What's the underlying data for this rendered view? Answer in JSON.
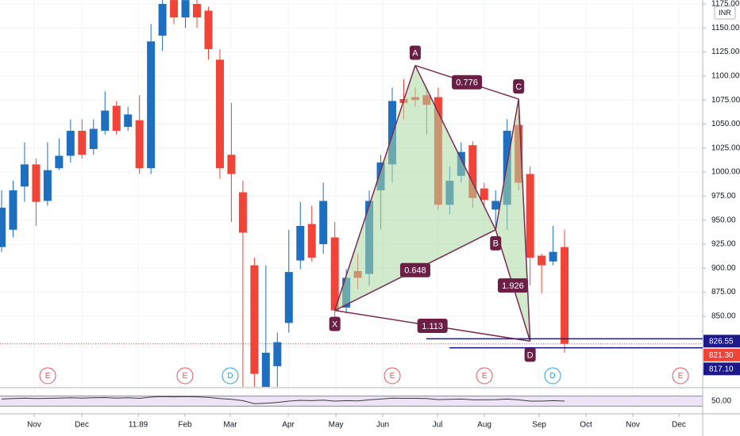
{
  "toolbar": {
    "currency": "INR"
  },
  "chart_data": {
    "type": "candlestick",
    "up_color": "#1f6fc0",
    "down_color": "#f04438",
    "open": [
      922,
      940,
      985,
      1008,
      970,
      1004,
      1017,
      1043,
      1024,
      1043,
      1069,
      1047,
      1054,
      1004,
      1142,
      1179,
      1161,
      1175,
      1168,
      1117,
      1018,
      979,
      903,
      775,
      798,
      843,
      908,
      946,
      925,
      932,
      859,
      897,
      894,
      981,
      1008,
      1076,
      1078,
      1080,
      1078,
      966,
      996,
      1028,
      983,
      961,
      966,
      1049,
      998,
      913,
      907,
      922
    ],
    "high": [
      981,
      991,
      1031,
      1014,
      1031,
      1035,
      1055,
      1055,
      1055,
      1084,
      1074,
      1068,
      1080,
      1154,
      1179,
      1179,
      1179,
      1179,
      1172,
      1128,
      1072,
      991,
      911,
      903,
      833,
      940,
      969,
      965,
      989,
      948,
      899,
      915,
      981,
      1018,
      1088,
      1097,
      1088,
      1088,
      1088,
      1006,
      1031,
      1032,
      989,
      981,
      1055,
      1064,
      1006,
      915,
      944,
      940
    ],
    "low": [
      917,
      932,
      969,
      944,
      965,
      1002,
      1010,
      1014,
      1018,
      1039,
      1039,
      1043,
      998,
      998,
      1126,
      1154,
      1150,
      1150,
      1117,
      993,
      948,
      775,
      775,
      775,
      775,
      833,
      899,
      907,
      915,
      849,
      853,
      878,
      882,
      940,
      989,
      1055,
      1068,
      1039,
      961,
      956,
      989,
      963,
      963,
      940,
      940,
      981,
      882,
      874,
      903,
      812
    ],
    "close": [
      963,
      981,
      1008,
      969,
      1002,
      1017,
      1043,
      1018,
      1045,
      1064,
      1043,
      1060,
      1004,
      1136,
      1175,
      1161,
      1179,
      1161,
      1128,
      1004,
      998,
      937,
      790,
      812,
      823,
      896,
      944,
      911,
      970,
      856,
      890,
      890,
      970,
      1010,
      1074,
      1072,
      1075,
      1070,
      966,
      991,
      1021,
      973,
      971,
      970,
      1043,
      989,
      911,
      903,
      917,
      821.3
    ],
    "xlim": [
      -0.14,
      61.02
    ],
    "xticks": [
      {
        "value": 2.83,
        "label": "Nov"
      },
      {
        "value": 6.98,
        "label": "Dec"
      },
      11.89,
      {
        "value": 15.96,
        "label": "Feb"
      },
      {
        "value": 19.9,
        "label": "Mar"
      },
      {
        "value": 24.95,
        "label": "Apr"
      },
      {
        "value": 29.1,
        "label": "May"
      },
      {
        "value": 33.17,
        "label": "Jun"
      },
      {
        "value": 37.94,
        "label": "Jul"
      },
      {
        "value": 42.02,
        "label": "Aug"
      },
      {
        "value": 46.79,
        "label": "Sep"
      },
      {
        "value": 50.86,
        "label": "Oct"
      },
      {
        "value": 54.94,
        "label": "Nov"
      },
      {
        "value": 58.95,
        "label": "Dec"
      }
    ],
    "ylim": [
      776.5,
      1179.1
    ],
    "yticks": [
      {
        "value": 850,
        "label": "850.00"
      },
      {
        "value": 875,
        "label": "875.00"
      },
      {
        "value": 900,
        "label": "900.00"
      },
      {
        "value": 925,
        "label": "925.00"
      },
      {
        "value": 950,
        "label": "950.00"
      },
      {
        "value": 975,
        "label": "975.00"
      },
      {
        "value": 1000,
        "label": "1000.00"
      },
      {
        "value": 1025,
        "label": "1025.00"
      },
      {
        "value": 1050,
        "label": "1050.00"
      },
      {
        "value": 1075,
        "label": "1075.00"
      },
      {
        "value": 1100,
        "label": "1100.00"
      },
      {
        "value": 1125,
        "label": "1125.00"
      },
      {
        "value": 1150,
        "label": "1150.00"
      },
      {
        "value": 1175,
        "label": "1175.00"
      }
    ],
    "grid": true,
    "price_lines": [
      {
        "value": 826.55,
        "label": "826.55",
        "color": "#1c1a8a"
      },
      {
        "value": 817.1,
        "label": "817.10",
        "color": "#1c1a8a"
      }
    ],
    "last_price": {
      "value": 821.3,
      "label": "821.30",
      "color": "#f04438"
    },
    "pattern": {
      "fill": "#a9d8a0",
      "color": "#7a2c52",
      "points": [
        {
          "label": "X",
          "x": 29,
          "y": 856
        },
        {
          "label": "A",
          "x": 36,
          "y": 1111
        },
        {
          "label": "B",
          "x": 43,
          "y": 940
        },
        {
          "label": "C",
          "x": 45,
          "y": 1076
        },
        {
          "label": "D",
          "x": 46,
          "y": 824
        }
      ],
      "ratios": [
        {
          "from": "A",
          "to": "C",
          "value": 0.776
        },
        {
          "from": "X",
          "to": "B",
          "value": 0.648
        },
        {
          "from": "X",
          "to": "D",
          "value": 1.113
        },
        {
          "from": "B",
          "to": "D",
          "value": 1.926
        }
      ]
    },
    "events": [
      {
        "label": "E",
        "x": 4.01,
        "color": "#e05656"
      },
      {
        "label": "E",
        "x": 15.96,
        "color": "#e05656"
      },
      {
        "label": "D",
        "x": 19.9,
        "color": "#2b9be0"
      },
      {
        "label": "E",
        "x": 34.0,
        "color": "#e05656"
      },
      {
        "label": "E",
        "x": 42.02,
        "color": "#e05656"
      },
      {
        "label": "D",
        "x": 47.96,
        "color": "#2b9be0"
      },
      {
        "label": "E",
        "x": 59.09,
        "color": "#e05656"
      }
    ],
    "rsi": {
      "values": [
        58,
        60,
        62,
        60,
        61,
        62,
        63,
        62,
        63,
        64,
        62,
        63,
        61,
        66,
        68,
        67,
        68,
        67,
        65,
        60,
        57,
        52,
        40,
        42,
        45,
        50,
        53,
        52,
        54,
        50,
        52,
        51,
        55,
        58,
        62,
        61,
        61,
        60,
        56,
        57,
        58,
        55,
        55,
        56,
        58,
        55,
        50,
        50,
        52,
        50
      ],
      "ylim": [
        0,
        100
      ],
      "band": [
        30,
        70
      ],
      "color": "#3a3a3a",
      "last": {
        "value": 50,
        "label": "50.00"
      }
    }
  }
}
